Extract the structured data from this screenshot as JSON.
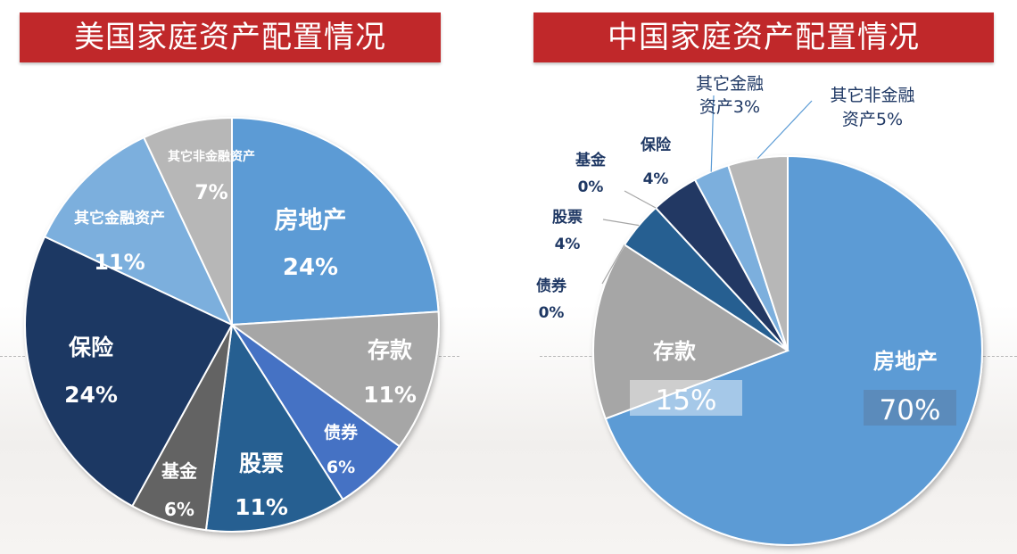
{
  "chart_data": [
    {
      "type": "pie",
      "title": "美国家庭资产配置情况",
      "slices": [
        {
          "name": "房地产",
          "value": 24,
          "label": "24%",
          "color": "#5b9bd5"
        },
        {
          "name": "存款",
          "value": 11,
          "label": "11%",
          "color": "#a6a6a6"
        },
        {
          "name": "债券",
          "value": 6,
          "label": "6%",
          "color": "#4472c4"
        },
        {
          "name": "股票",
          "value": 11,
          "label": "11%",
          "color": "#255e91"
        },
        {
          "name": "基金",
          "value": 6,
          "label": "6%",
          "color": "#636363"
        },
        {
          "name": "保险",
          "value": 24,
          "label": "24%",
          "color": "#1f3864"
        },
        {
          "name": "其它金融资产",
          "value": 11,
          "label": "11%",
          "color": "#7cafdd"
        },
        {
          "name": "其它非金融资产",
          "value": 7,
          "label": "7%",
          "color": "#b7b7b7"
        }
      ]
    },
    {
      "type": "pie",
      "title": "中国家庭资产配置情况",
      "slices": [
        {
          "name": "房地产",
          "value": 70,
          "label": "70%",
          "color": "#5b9bd5"
        },
        {
          "name": "存款",
          "value": 15,
          "label": "15%",
          "color": "#a6a6a6"
        },
        {
          "name": "债券",
          "value": 0,
          "label": "0%",
          "color": "#4472c4"
        },
        {
          "name": "股票",
          "value": 4,
          "label": "4%",
          "color": "#255e91"
        },
        {
          "name": "基金",
          "value": 0,
          "label": "0%",
          "color": "#636363"
        },
        {
          "name": "保险",
          "value": 4,
          "label": "4%",
          "color": "#203864"
        },
        {
          "name": "其它金融资产",
          "value": 3,
          "label": "3%",
          "color": "#7cafdd"
        },
        {
          "name": "其它非金融资产",
          "value": 5,
          "label": "5%",
          "color": "#b7b7b7"
        }
      ]
    }
  ]
}
